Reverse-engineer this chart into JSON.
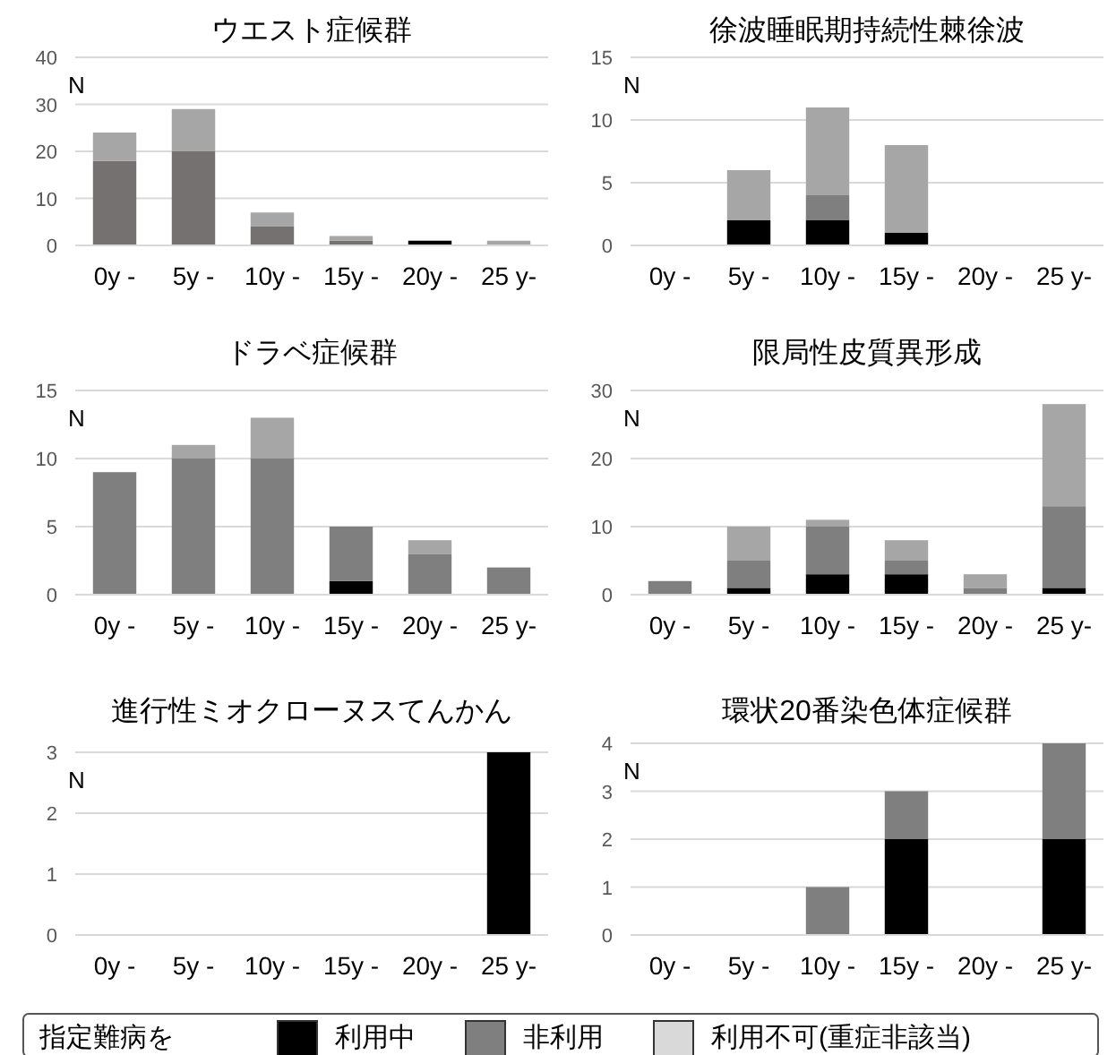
{
  "chart_data": [
    {
      "type": "bar",
      "stacked": true,
      "title": "ウエスト症候群",
      "ylabel": "N",
      "categories": [
        "0y -",
        "5y -",
        "10y -",
        "15y -",
        "20y -",
        "25 y-"
      ],
      "ylim": [
        0,
        40
      ],
      "yticks": [
        0,
        10,
        20,
        30,
        40
      ],
      "grid": "y",
      "series": [
        {
          "color": "#000000",
          "values": [
            0,
            0,
            0,
            0,
            1,
            0
          ]
        },
        {
          "color": "#767171",
          "values": [
            18,
            20,
            4,
            1,
            0,
            0
          ]
        },
        {
          "color": "#a6a6a6",
          "values": [
            6,
            9,
            3,
            1,
            0,
            1
          ]
        }
      ]
    },
    {
      "type": "bar",
      "stacked": true,
      "title": "徐波睡眠期持続性棘徐波",
      "ylabel": "N",
      "categories": [
        "0y -",
        "5y -",
        "10y -",
        "15y -",
        "20y -",
        "25 y-"
      ],
      "ylim": [
        0,
        15
      ],
      "yticks": [
        0,
        5,
        10,
        15
      ],
      "grid": "y",
      "series": [
        {
          "color": "#000000",
          "values": [
            0,
            2,
            2,
            1,
            0,
            0
          ]
        },
        {
          "color": "#7f7f7f",
          "values": [
            0,
            0,
            2,
            0,
            0,
            0
          ]
        },
        {
          "color": "#a6a6a6",
          "values": [
            0,
            4,
            7,
            7,
            0,
            0
          ]
        }
      ]
    },
    {
      "type": "bar",
      "stacked": true,
      "title": "ドラベ症候群",
      "ylabel": "N",
      "categories": [
        "0y -",
        "5y -",
        "10y -",
        "15y -",
        "20y -",
        "25 y-"
      ],
      "ylim": [
        0,
        15
      ],
      "yticks": [
        0,
        5,
        10,
        15
      ],
      "grid": "y",
      "series": [
        {
          "color": "#000000",
          "values": [
            0,
            0,
            0,
            1,
            0,
            0
          ]
        },
        {
          "color": "#7f7f7f",
          "values": [
            9,
            10,
            10,
            4,
            3,
            2
          ]
        },
        {
          "color": "#a6a6a6",
          "values": [
            0,
            1,
            3,
            0,
            1,
            0
          ]
        }
      ]
    },
    {
      "type": "bar",
      "stacked": true,
      "title": "限局性皮質異形成",
      "ylabel": "N",
      "categories": [
        "0y -",
        "5y -",
        "10y -",
        "15y -",
        "20y -",
        "25 y-"
      ],
      "ylim": [
        0,
        30
      ],
      "yticks": [
        0,
        10,
        20,
        30
      ],
      "grid": "y",
      "series": [
        {
          "color": "#000000",
          "values": [
            0,
            1,
            3,
            3,
            0,
            1
          ]
        },
        {
          "color": "#7f7f7f",
          "values": [
            2,
            4,
            7,
            2,
            1,
            12
          ]
        },
        {
          "color": "#a6a6a6",
          "values": [
            0,
            5,
            1,
            3,
            2,
            15
          ]
        }
      ]
    },
    {
      "type": "bar",
      "stacked": true,
      "title": "進行性ミオクローヌスてんかん",
      "ylabel": "N",
      "categories": [
        "0y -",
        "5y -",
        "10y -",
        "15y -",
        "20y -",
        "25 y-"
      ],
      "ylim": [
        0,
        3
      ],
      "yticks": [
        0,
        1,
        2,
        3
      ],
      "grid": "y",
      "series": [
        {
          "color": "#000000",
          "values": [
            0,
            0,
            0,
            0,
            0,
            3
          ]
        }
      ]
    },
    {
      "type": "bar",
      "stacked": true,
      "title": "環状20番染色体症候群",
      "ylabel": "N",
      "categories": [
        "0y -",
        "5y -",
        "10y -",
        "15y -",
        "20y -",
        "25 y-"
      ],
      "ylim": [
        0,
        4
      ],
      "yticks": [
        0,
        1,
        2,
        3,
        4
      ],
      "grid": "y",
      "legend": "bottom",
      "legend_title": "指定難病を",
      "series": [
        {
          "name": "利用中",
          "color": "#000000",
          "values": [
            0,
            0,
            0,
            2,
            0,
            2
          ]
        },
        {
          "name": "非利用",
          "color": "#7f7f7f",
          "values": [
            0,
            0,
            1,
            1,
            0,
            2
          ]
        },
        {
          "name": "利用不可(重症非該当)",
          "color": "#d9d9d9",
          "values": [
            0,
            0,
            0,
            0,
            0,
            0
          ]
        }
      ]
    }
  ]
}
